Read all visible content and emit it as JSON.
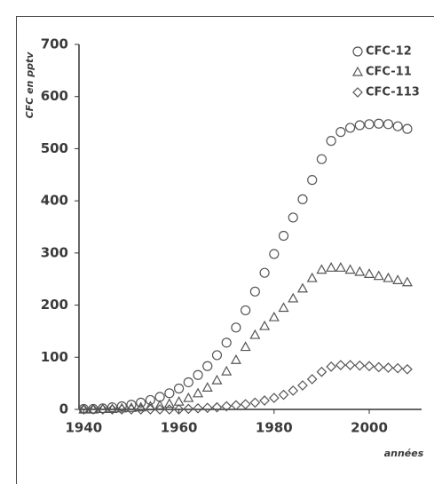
{
  "chart_data": {
    "type": "scatter",
    "y_label": "CFC en pptv",
    "x_label": "années",
    "x": [
      1940,
      1942,
      1944,
      1946,
      1948,
      1950,
      1952,
      1954,
      1956,
      1958,
      1960,
      1962,
      1964,
      1966,
      1968,
      1970,
      1972,
      1974,
      1976,
      1978,
      1980,
      1982,
      1984,
      1986,
      1988,
      1990,
      1992,
      1994,
      1996,
      1998,
      2000,
      2002,
      2004,
      2006,
      2008
    ],
    "series": [
      {
        "name": "CFC-12",
        "marker": "circle",
        "color": "#555555",
        "values": [
          1,
          1,
          2,
          4,
          6,
          9,
          13,
          18,
          24,
          31,
          40,
          52,
          66,
          83,
          104,
          128,
          157,
          190,
          226,
          262,
          298,
          333,
          368,
          403,
          440,
          480,
          515,
          532,
          540,
          545,
          547,
          548,
          547,
          543,
          538
        ]
      },
      {
        "name": "CFC-11",
        "marker": "triangle",
        "color": "#555555",
        "values": [
          0,
          0,
          1,
          1,
          2,
          3,
          4,
          6,
          8,
          11,
          15,
          22,
          31,
          42,
          56,
          73,
          95,
          120,
          143,
          160,
          177,
          195,
          213,
          232,
          252,
          268,
          272,
          272,
          268,
          264,
          260,
          256,
          252,
          248,
          244
        ]
      },
      {
        "name": "CFC-113",
        "marker": "diamond",
        "color": "#555555",
        "values": [
          0,
          0,
          0,
          0,
          0,
          0,
          0,
          0,
          0,
          0,
          0,
          1,
          2,
          3,
          4,
          6,
          8,
          10,
          13,
          17,
          22,
          28,
          36,
          46,
          58,
          72,
          82,
          85,
          85,
          84,
          83,
          81,
          80,
          79,
          77
        ]
      }
    ],
    "xlim": [
      1939,
      2011
    ],
    "xticks": [
      1940,
      1960,
      1980,
      2000
    ],
    "ylim": [
      0,
      700
    ],
    "yticks": [
      0,
      100,
      200,
      300,
      400,
      500,
      600,
      700
    ],
    "legend": "top-right"
  }
}
